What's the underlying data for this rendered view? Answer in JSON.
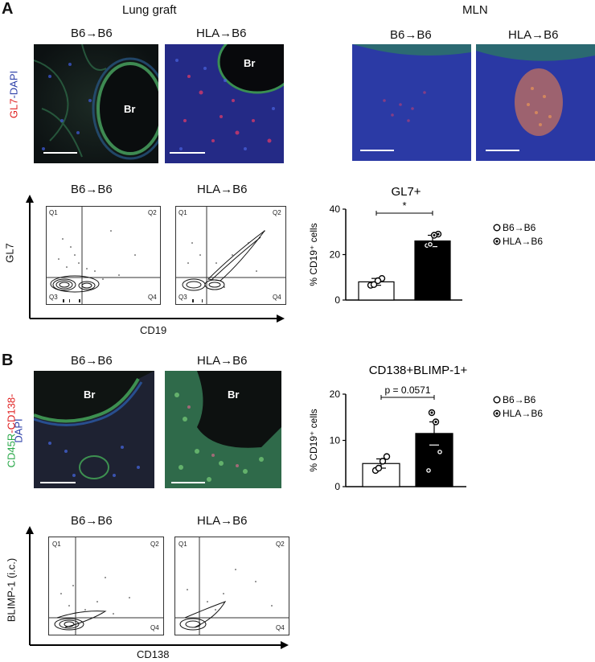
{
  "panel_a": {
    "letter": "A",
    "lung_graft_title": "Lung graft",
    "mln_title": "MLN",
    "group_b6": "B6→B6",
    "group_hla": "HLA→B6",
    "stain_label_red": "GL7",
    "stain_label_blue": "-DAPI",
    "br_label": "Br",
    "flow_y_axis": "GL7",
    "flow_x_axis": "CD19",
    "quadrants": [
      "Q1",
      "Q2",
      "Q3",
      "Q4"
    ]
  },
  "panel_b": {
    "letter": "B",
    "group_b6": "B6→B6",
    "group_hla": "HLA→B6",
    "stain_green": "CD45R",
    "stain_red": "-CD138-",
    "stain_blue": "DAPI",
    "br_label": "Br",
    "flow_y_axis": "BLIMP-1 (i.c.)",
    "flow_x_axis": "CD138",
    "quadrants": [
      "Q1",
      "Q2",
      "Q4"
    ]
  },
  "colors": {
    "dapi_blue": "#2c3fa8",
    "gl7_red": "#e02020",
    "cd45r_green": "#2aa84a",
    "bar_b6": "#ffffff",
    "bar_hla": "#000000"
  },
  "chart_data": [
    {
      "type": "bar",
      "title": "GL7+",
      "ylabel": "% CD19⁺ cells",
      "categories": [
        "B6→B6",
        "HLA→B6"
      ],
      "values": [
        8,
        26
      ],
      "errors": [
        1.5,
        2.5
      ],
      "points": [
        [
          6.5,
          9.5,
          8.5,
          6.8
        ],
        [
          24,
          29,
          28.5,
          24.5
        ]
      ],
      "ylim": [
        0,
        40
      ],
      "yticks": [
        0,
        20,
        40
      ],
      "significance": "*",
      "legend": [
        "B6→B6",
        "HLA→B6"
      ],
      "legend_placement": "right"
    },
    {
      "type": "bar",
      "title": "CD138+BLIMP-1+",
      "ylabel": "% CD19⁺ cells",
      "categories": [
        "B6→B6",
        "HLA→B6"
      ],
      "values": [
        5,
        11.5
      ],
      "errors": [
        1,
        2.5
      ],
      "points": [
        [
          3.5,
          6.5,
          5.5,
          4
        ],
        [
          3.5,
          7.5,
          14,
          16
        ]
      ],
      "ylim": [
        0,
        20
      ],
      "yticks": [
        0,
        10,
        20
      ],
      "significance": "p = 0.0571",
      "legend": [
        "B6→B6",
        "HLA→B6"
      ],
      "legend_placement": "right"
    }
  ]
}
